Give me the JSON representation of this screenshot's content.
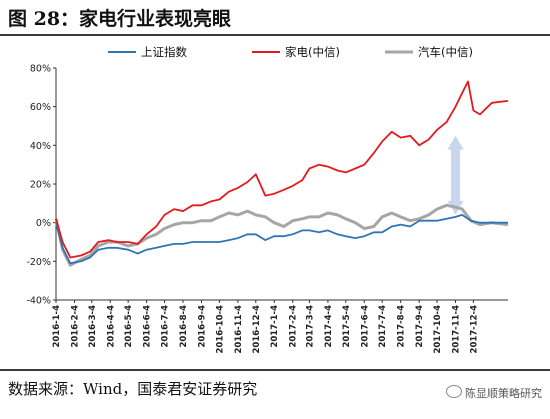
{
  "title": "图 28：家电行业表现亮眼",
  "source": "数据来源：Wind，国泰君安证券研究",
  "watermark": "陈显顺策略研究",
  "chart_data": {
    "type": "line",
    "xlabel": "",
    "ylabel": "",
    "y_tick_format": "percent",
    "ylim": [
      -40,
      80
    ],
    "yticks": [
      -40,
      -20,
      0,
      20,
      40,
      60,
      80
    ],
    "xlim": [
      "2016-01-04",
      "2018-01-31"
    ],
    "x_tick_labels": [
      "2016-1-4",
      "2016-2-4",
      "2016-3-4",
      "2016-4-4",
      "2016-5-4",
      "2016-6-4",
      "2016-7-4",
      "2016-8-4",
      "2016-9-4",
      "2016-10-4",
      "2016-11-4",
      "2016-12-4",
      "2017-1-4",
      "2017-2-4",
      "2017-3-4",
      "2017-4-4",
      "2017-5-4",
      "2017-6-4",
      "2017-7-4",
      "2017-8-4",
      "2017-9-4",
      "2017-10-4",
      "2017-11-4",
      "2017-12-4"
    ],
    "grid": false,
    "legend_position": "top",
    "series": [
      {
        "name": "上证指数",
        "color": "#2e75b6",
        "points": [
          [
            "2016-01-04",
            0
          ],
          [
            "2016-01-15",
            -13
          ],
          [
            "2016-01-28",
            -21
          ],
          [
            "2016-02-15",
            -20
          ],
          [
            "2016-03-01",
            -18
          ],
          [
            "2016-03-15",
            -14
          ],
          [
            "2016-04-01",
            -13
          ],
          [
            "2016-04-15",
            -13
          ],
          [
            "2016-05-04",
            -14
          ],
          [
            "2016-05-20",
            -16
          ],
          [
            "2016-06-04",
            -14
          ],
          [
            "2016-06-20",
            -13
          ],
          [
            "2016-07-04",
            -12
          ],
          [
            "2016-07-20",
            -11
          ],
          [
            "2016-08-04",
            -11
          ],
          [
            "2016-08-20",
            -10
          ],
          [
            "2016-09-04",
            -10
          ],
          [
            "2016-09-20",
            -10
          ],
          [
            "2016-10-04",
            -10
          ],
          [
            "2016-10-20",
            -9
          ],
          [
            "2016-11-04",
            -8
          ],
          [
            "2016-11-20",
            -6
          ],
          [
            "2016-12-04",
            -6
          ],
          [
            "2016-12-20",
            -9
          ],
          [
            "2017-01-04",
            -7
          ],
          [
            "2017-01-20",
            -7
          ],
          [
            "2017-02-04",
            -6
          ],
          [
            "2017-02-20",
            -4
          ],
          [
            "2017-03-04",
            -4
          ],
          [
            "2017-03-20",
            -5
          ],
          [
            "2017-04-04",
            -4
          ],
          [
            "2017-04-20",
            -6
          ],
          [
            "2017-05-04",
            -7
          ],
          [
            "2017-05-20",
            -8
          ],
          [
            "2017-06-04",
            -7
          ],
          [
            "2017-06-20",
            -5
          ],
          [
            "2017-07-04",
            -5
          ],
          [
            "2017-07-20",
            -2
          ],
          [
            "2017-08-04",
            -1
          ],
          [
            "2017-08-20",
            -2
          ],
          [
            "2017-09-04",
            1
          ],
          [
            "2017-09-20",
            1
          ],
          [
            "2017-10-04",
            1
          ],
          [
            "2017-10-20",
            2
          ],
          [
            "2017-11-04",
            3
          ],
          [
            "2017-11-15",
            4
          ],
          [
            "2017-11-30",
            1
          ],
          [
            "2017-12-15",
            0
          ],
          [
            "2018-01-04",
            0
          ],
          [
            "2018-01-31",
            0
          ]
        ]
      },
      {
        "name": "家电(中信)",
        "color": "#e31a1c",
        "points": [
          [
            "2016-01-04",
            2
          ],
          [
            "2016-01-15",
            -10
          ],
          [
            "2016-01-28",
            -18
          ],
          [
            "2016-02-15",
            -17
          ],
          [
            "2016-03-01",
            -15
          ],
          [
            "2016-03-15",
            -10
          ],
          [
            "2016-04-01",
            -9
          ],
          [
            "2016-04-15",
            -10
          ],
          [
            "2016-05-04",
            -10
          ],
          [
            "2016-05-20",
            -11
          ],
          [
            "2016-06-04",
            -6
          ],
          [
            "2016-06-20",
            -2
          ],
          [
            "2016-07-04",
            4
          ],
          [
            "2016-07-20",
            7
          ],
          [
            "2016-08-04",
            6
          ],
          [
            "2016-08-20",
            9
          ],
          [
            "2016-09-04",
            9
          ],
          [
            "2016-09-20",
            11
          ],
          [
            "2016-10-04",
            12
          ],
          [
            "2016-10-20",
            16
          ],
          [
            "2016-11-04",
            18
          ],
          [
            "2016-11-20",
            21
          ],
          [
            "2016-12-04",
            25
          ],
          [
            "2016-12-20",
            14
          ],
          [
            "2017-01-04",
            15
          ],
          [
            "2017-01-20",
            17
          ],
          [
            "2017-02-04",
            19
          ],
          [
            "2017-02-20",
            22
          ],
          [
            "2017-03-04",
            28
          ],
          [
            "2017-03-20",
            30
          ],
          [
            "2017-04-04",
            29
          ],
          [
            "2017-04-20",
            27
          ],
          [
            "2017-05-04",
            26
          ],
          [
            "2017-05-20",
            28
          ],
          [
            "2017-06-04",
            30
          ],
          [
            "2017-06-20",
            36
          ],
          [
            "2017-07-04",
            42
          ],
          [
            "2017-07-20",
            47
          ],
          [
            "2017-08-04",
            44
          ],
          [
            "2017-08-20",
            45
          ],
          [
            "2017-09-04",
            40
          ],
          [
            "2017-09-20",
            43
          ],
          [
            "2017-10-04",
            48
          ],
          [
            "2017-10-20",
            52
          ],
          [
            "2017-11-04",
            60
          ],
          [
            "2017-11-15",
            67
          ],
          [
            "2017-11-25",
            73
          ],
          [
            "2017-12-04",
            58
          ],
          [
            "2017-12-15",
            56
          ],
          [
            "2018-01-04",
            62
          ],
          [
            "2018-01-31",
            63
          ]
        ]
      },
      {
        "name": "汽车(中信)",
        "color": "#a6a6a6",
        "points": [
          [
            "2016-01-04",
            2
          ],
          [
            "2016-01-15",
            -14
          ],
          [
            "2016-01-28",
            -22
          ],
          [
            "2016-02-15",
            -19
          ],
          [
            "2016-03-01",
            -17
          ],
          [
            "2016-03-15",
            -12
          ],
          [
            "2016-04-01",
            -10
          ],
          [
            "2016-04-15",
            -10
          ],
          [
            "2016-05-04",
            -12
          ],
          [
            "2016-05-20",
            -11
          ],
          [
            "2016-06-04",
            -8
          ],
          [
            "2016-06-20",
            -6
          ],
          [
            "2016-07-04",
            -3
          ],
          [
            "2016-07-20",
            -1
          ],
          [
            "2016-08-04",
            0
          ],
          [
            "2016-08-20",
            0
          ],
          [
            "2016-09-04",
            1
          ],
          [
            "2016-09-20",
            1
          ],
          [
            "2016-10-04",
            3
          ],
          [
            "2016-10-20",
            5
          ],
          [
            "2016-11-04",
            4
          ],
          [
            "2016-11-20",
            6
          ],
          [
            "2016-12-04",
            4
          ],
          [
            "2016-12-20",
            3
          ],
          [
            "2017-01-04",
            0
          ],
          [
            "2017-01-20",
            -2
          ],
          [
            "2017-02-04",
            1
          ],
          [
            "2017-02-20",
            2
          ],
          [
            "2017-03-04",
            3
          ],
          [
            "2017-03-20",
            3
          ],
          [
            "2017-04-04",
            5
          ],
          [
            "2017-04-20",
            4
          ],
          [
            "2017-05-04",
            2
          ],
          [
            "2017-05-20",
            0
          ],
          [
            "2017-06-04",
            -3
          ],
          [
            "2017-06-20",
            -2
          ],
          [
            "2017-07-04",
            3
          ],
          [
            "2017-07-20",
            5
          ],
          [
            "2017-08-04",
            3
          ],
          [
            "2017-08-20",
            1
          ],
          [
            "2017-09-04",
            2
          ],
          [
            "2017-09-20",
            4
          ],
          [
            "2017-10-04",
            7
          ],
          [
            "2017-10-20",
            9
          ],
          [
            "2017-11-04",
            8
          ],
          [
            "2017-11-15",
            7
          ],
          [
            "2017-11-30",
            1
          ],
          [
            "2017-12-15",
            -1
          ],
          [
            "2018-01-04",
            0
          ],
          [
            "2018-01-31",
            -1
          ]
        ]
      }
    ],
    "annotations": [
      {
        "type": "double-arrow",
        "x": "2017-11-04",
        "y_from": 4,
        "y_to": 45,
        "color": "#c9d6ef"
      }
    ]
  }
}
